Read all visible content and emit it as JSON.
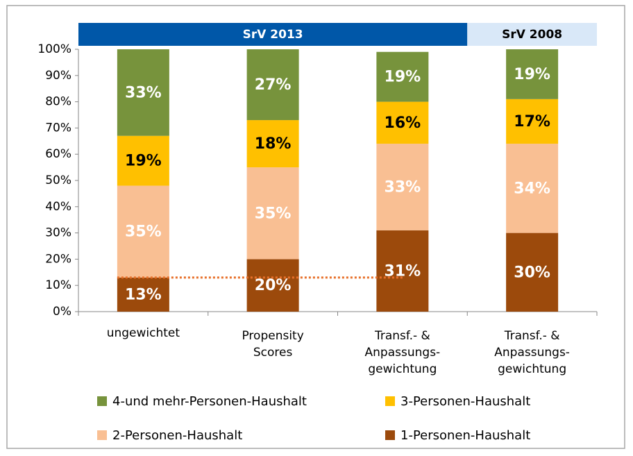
{
  "chart_data": {
    "type": "stacked_bar",
    "categories": [
      [
        "ungewichtet"
      ],
      [
        "Propensity",
        "Scores"
      ],
      [
        "Transf.- &",
        "Anpassungs-",
        "gewichtung"
      ],
      [
        "Transf.- &",
        "Anpassungs-",
        "gewichtung"
      ]
    ],
    "groups": [
      {
        "label": "SrV 2013",
        "span": 3,
        "color": "#0057a8",
        "text_color": "#ffffff"
      },
      {
        "label": "SrV 2008",
        "span": 1,
        "color": "#d9e8f8",
        "text_color": "#000000"
      }
    ],
    "series": [
      {
        "name": "1-Personen-Haushalt",
        "color": "#9c4a0c",
        "label_color": "#ffffff",
        "values": [
          13,
          20,
          31,
          30
        ],
        "value_labels": [
          "13%",
          "20%",
          "31%",
          "30%"
        ]
      },
      {
        "name": "2-Personen-Haushalt",
        "color": "#f9bf93",
        "label_color": "#ffffff",
        "values": [
          35,
          35,
          33,
          34
        ],
        "value_labels": [
          "35%",
          "35%",
          "33%",
          "34%"
        ]
      },
      {
        "name": "3-Personen-Haushalt",
        "color": "#ffc000",
        "label_color": "#000000",
        "values": [
          19,
          18,
          16,
          17
        ],
        "value_labels": [
          "19%",
          "18%",
          "16%",
          "17%"
        ]
      },
      {
        "name": "4-und mehr-Personen-Haushalt",
        "color": "#77933c",
        "label_color": "#ffffff",
        "values": [
          33,
          27,
          19,
          19
        ],
        "value_labels": [
          "33%",
          "27%",
          "19%",
          "19%"
        ]
      }
    ],
    "reference_line": {
      "value": 13,
      "color": "#e8702a"
    },
    "ylim": [
      0,
      100
    ],
    "yticks": [
      {
        "value": 0,
        "label": "0%"
      },
      {
        "value": 10,
        "label": "10%"
      },
      {
        "value": 20,
        "label": "20%"
      },
      {
        "value": 30,
        "label": "30%"
      },
      {
        "value": 40,
        "label": "40%"
      },
      {
        "value": 50,
        "label": "50%"
      },
      {
        "value": 60,
        "label": "60%"
      },
      {
        "value": 70,
        "label": "70%"
      },
      {
        "value": 80,
        "label": "80%"
      },
      {
        "value": 90,
        "label": "90%"
      },
      {
        "value": 100,
        "label": "100%"
      }
    ],
    "grid": false
  }
}
